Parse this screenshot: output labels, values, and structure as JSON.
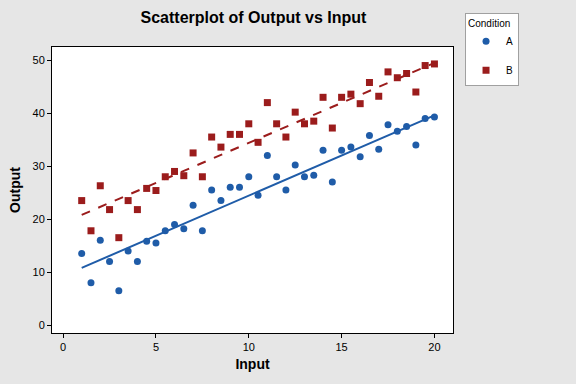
{
  "chart_data": {
    "type": "scatter",
    "title": "Scatterplot of Output vs Input",
    "x_label": "Input",
    "y_label": "Output",
    "legend_title": "Condition",
    "legend": "outside right",
    "grid": false,
    "xlim": [
      -0.6,
      21
    ],
    "ylim": [
      -1.5,
      52.5
    ],
    "xticks": [
      0,
      5,
      10,
      15,
      20
    ],
    "yticks": [
      0,
      10,
      20,
      30,
      40,
      50
    ],
    "series": [
      {
        "name": "A",
        "color": "#1f5ca8",
        "marker": "circle",
        "line_style": "solid",
        "x": [
          1,
          1.5,
          2,
          2.5,
          3,
          3.5,
          4,
          4.5,
          5,
          5.5,
          6,
          6.5,
          7,
          7.5,
          8,
          8.5,
          9,
          9.5,
          10,
          10.5,
          11,
          11.5,
          12,
          12.5,
          13,
          13.5,
          14,
          14.5,
          15,
          15.5,
          16,
          16.5,
          17,
          17.5,
          18,
          18.5,
          19,
          19.5,
          20
        ],
        "values": [
          13.5,
          8,
          16,
          12,
          6.5,
          14,
          12,
          15.8,
          15.5,
          17.8,
          19,
          18.2,
          22.6,
          17.8,
          25.5,
          23.5,
          26,
          26,
          28,
          24.5,
          32,
          28,
          25.5,
          30.2,
          28,
          28.3,
          33,
          27,
          33,
          33.6,
          31.8,
          35.8,
          33.2,
          37.8,
          36.6,
          37.5,
          34,
          39,
          39.3
        ],
        "fit_x": [
          1,
          20
        ],
        "fit_values": [
          10.8,
          39.6
        ]
      },
      {
        "name": "B",
        "color": "#9b1c1c",
        "marker": "square",
        "line_style": "dash",
        "x": [
          1,
          1.5,
          2,
          2.5,
          3,
          3.5,
          4,
          4.5,
          5,
          5.5,
          6,
          6.5,
          7,
          7.5,
          8,
          8.5,
          9,
          9.5,
          10,
          10.5,
          11,
          11.5,
          12,
          12.5,
          13,
          13.5,
          14,
          14.5,
          15,
          15.5,
          16,
          16.5,
          17,
          17.5,
          18,
          18.5,
          19,
          19.5,
          20
        ],
        "values": [
          23.5,
          17.8,
          26.3,
          21.8,
          16.5,
          23.5,
          21.8,
          25.8,
          25.4,
          28,
          29,
          28.2,
          32.5,
          28,
          35.5,
          33.6,
          36,
          36,
          38,
          34.5,
          42,
          38,
          35.5,
          40.2,
          38,
          38.5,
          43,
          37.2,
          43,
          43.6,
          41.8,
          45.8,
          43.2,
          47.8,
          46.7,
          47.5,
          44,
          49,
          49.3
        ],
        "fit_x": [
          1,
          20
        ],
        "fit_values": [
          20.8,
          49.5
        ]
      }
    ]
  }
}
